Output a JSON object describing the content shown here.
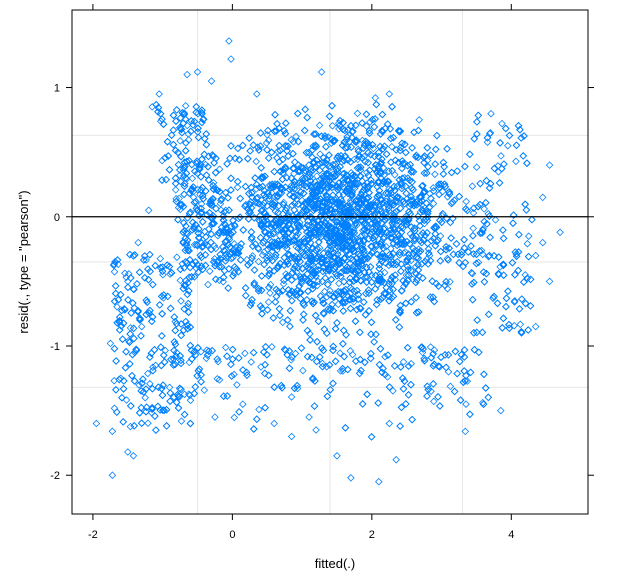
{
  "chart_data": {
    "type": "scatter",
    "title": "",
    "xlabel": "fitted(.)",
    "ylabel": "resid(., type = \"pearson\")",
    "xlim": [
      -2.3,
      5.1
    ],
    "ylim": [
      -2.3,
      1.6
    ],
    "x_ticks": [
      -2,
      0,
      2,
      4
    ],
    "y_ticks": [
      -2,
      -1,
      0,
      1
    ],
    "x_tick_labels": [
      "-2",
      "0",
      "2",
      "4"
    ],
    "y_tick_labels": [
      "-2",
      "-1",
      "0",
      "1"
    ],
    "reference_line_y": 0,
    "grid": true,
    "grid_x": [
      -0.5,
      1.4,
      3.3
    ],
    "grid_y": [
      -1.32,
      -0.35,
      0.63
    ],
    "marker": "open-diamond",
    "point_color": "#0080ff",
    "cloud": {
      "center": [
        1.55,
        -0.05
      ],
      "x_range": [
        -1.2,
        4.1
      ],
      "y_range": [
        -1.2,
        0.88
      ],
      "approx_points": 28000
    },
    "outliers": [
      [
        -1.95,
        -1.6
      ],
      [
        -1.72,
        -2.0
      ],
      [
        -1.5,
        -1.82
      ],
      [
        -1.42,
        -1.85
      ],
      [
        -1.72,
        -1.66
      ],
      [
        -1.6,
        -1.25
      ],
      [
        -1.75,
        -0.98
      ],
      [
        -1.5,
        -0.5
      ],
      [
        -1.35,
        -0.2
      ],
      [
        -1.2,
        0.05
      ],
      [
        -1.15,
        0.85
      ],
      [
        -1.05,
        0.95
      ],
      [
        -0.5,
        1.12
      ],
      [
        -0.05,
        1.36
      ],
      [
        -0.02,
        1.22
      ],
      [
        1.28,
        1.12
      ],
      [
        -0.3,
        1.05
      ],
      [
        -0.65,
        1.1
      ],
      [
        0.6,
        -1.6
      ],
      [
        0.85,
        -1.7
      ],
      [
        1.2,
        -1.65
      ],
      [
        1.5,
        -1.85
      ],
      [
        1.7,
        -2.02
      ],
      [
        2.1,
        -2.05
      ],
      [
        2.25,
        -1.6
      ],
      [
        2.35,
        -1.88
      ],
      [
        3.85,
        -1.5
      ],
      [
        3.35,
        -1.45
      ],
      [
        4.05,
        -0.65
      ],
      [
        4.35,
        -0.85
      ],
      [
        4.55,
        -0.5
      ],
      [
        4.25,
        -0.15
      ],
      [
        4.45,
        -0.2
      ],
      [
        4.7,
        -0.12
      ],
      [
        4.55,
        0.4
      ],
      [
        4.45,
        0.15
      ],
      [
        3.95,
        0.55
      ],
      [
        3.7,
        0.65
      ],
      [
        2.05,
        0.92
      ],
      [
        2.25,
        0.95
      ],
      [
        0.35,
        0.95
      ],
      [
        -0.25,
        -1.55
      ],
      [
        -0.6,
        -1.42
      ],
      [
        -0.9,
        -1.32
      ],
      [
        -1.25,
        -1.4
      ],
      [
        -1.1,
        -1.15
      ],
      [
        -1.3,
        -0.85
      ],
      [
        -0.8,
        -1.05
      ],
      [
        4.2,
        -0.45
      ],
      [
        4.35,
        -0.3
      ],
      [
        1.1,
        -1.55
      ],
      [
        0.15,
        -1.45
      ],
      [
        2.85,
        -1.35
      ],
      [
        3.1,
        -1.2
      ],
      [
        -1.4,
        -1.05
      ]
    ]
  }
}
